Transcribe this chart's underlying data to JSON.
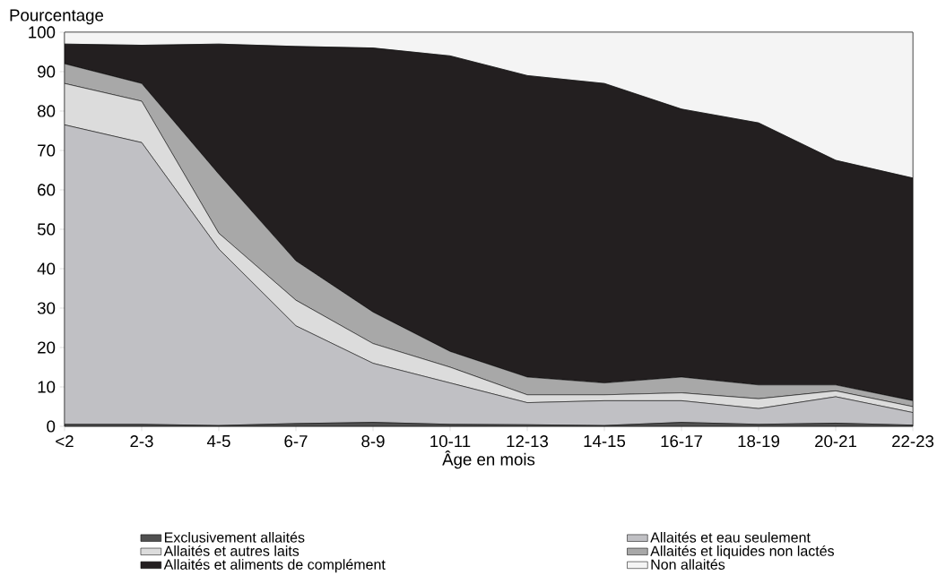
{
  "chart_data": {
    "type": "area",
    "stacked": true,
    "xlabel": "Âge en mois",
    "ylabel": "Pourcentage",
    "legend": "bottom",
    "ylim": [
      0,
      100
    ],
    "yticks": [
      0,
      10,
      20,
      30,
      40,
      50,
      60,
      70,
      80,
      90,
      100
    ],
    "categories": [
      "<2",
      "2-3",
      "4-5",
      "6-7",
      "8-9",
      "10-11",
      "12-13",
      "14-15",
      "16-17",
      "18-19",
      "20-21",
      "22-23"
    ],
    "series": [
      {
        "name": "Exclusivement allaités",
        "color": "#505050",
        "values": [
          0.5,
          0.5,
          0.2,
          0.7,
          1.0,
          0.5,
          0.4,
          0.2,
          1.0,
          0.5,
          0.8,
          0.3
        ]
      },
      {
        "name": "Allaités et eau seulement",
        "color": "#c0c0c4",
        "values": [
          76,
          71.5,
          44.8,
          24.8,
          15,
          10.5,
          5.6,
          6.3,
          5.5,
          4,
          6.7,
          3.2
        ]
      },
      {
        "name": "Allaités et autres laits",
        "color": "#dcdcdc",
        "values": [
          10.5,
          10.5,
          4,
          6.5,
          5,
          4,
          2,
          1.5,
          2,
          2.5,
          1.5,
          1.5
        ]
      },
      {
        "name": "Allaités et liquides non lactés",
        "color": "#a8a8a8",
        "values": [
          5,
          4.5,
          15,
          10,
          8,
          4,
          4.5,
          3,
          4,
          3.5,
          1.5,
          1.5
        ]
      },
      {
        "name": "Allaités et aliments de complément",
        "color": "#231f20",
        "values": [
          5,
          9.7,
          33,
          54.4,
          67,
          75,
          76.5,
          76,
          68,
          66.5,
          57,
          56.5
        ]
      },
      {
        "name": "Non allaités",
        "color": "#f4f4f4",
        "values": [
          3,
          3.3,
          3,
          3.6,
          4,
          6,
          11,
          13,
          19.5,
          23,
          32.5,
          37
        ]
      }
    ]
  }
}
